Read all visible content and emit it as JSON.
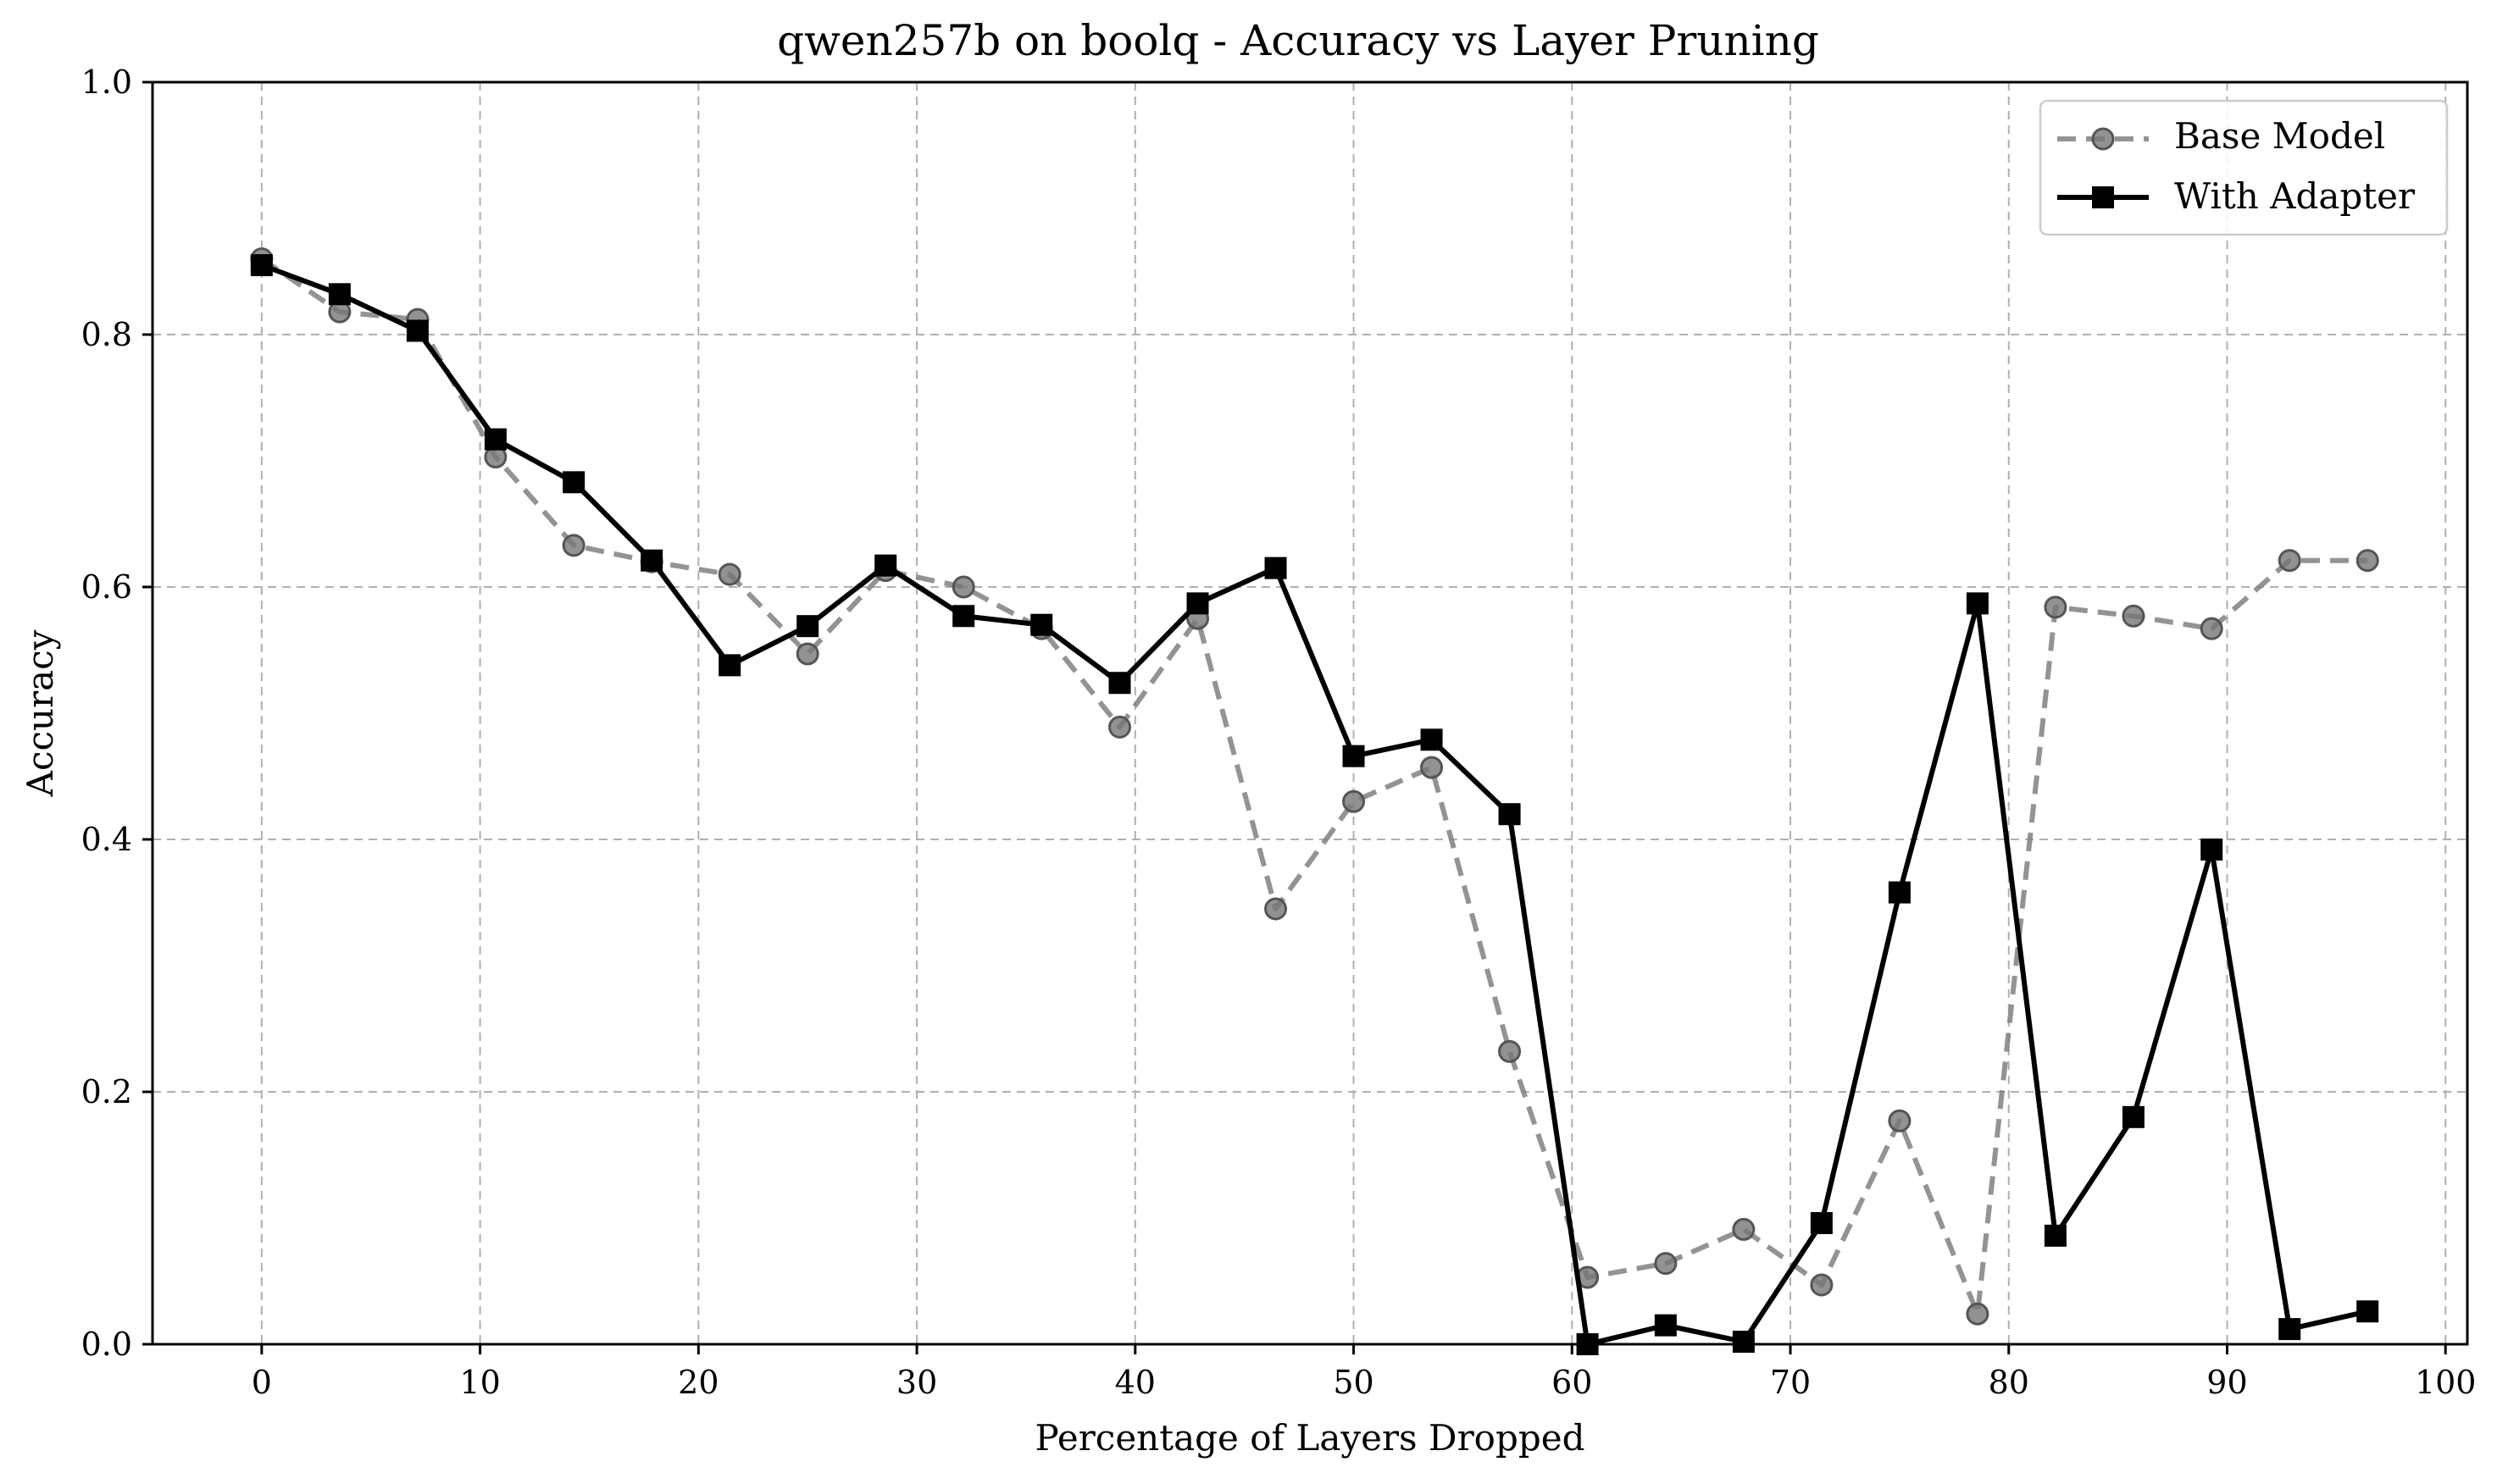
{
  "chart_data": {
    "type": "line",
    "title": "qwen257b on boolq - Accuracy vs Layer Pruning",
    "xlabel": "Percentage of Layers Dropped",
    "ylabel": "Accuracy",
    "xlim": [
      -5,
      101
    ],
    "ylim": [
      0,
      1
    ],
    "xticks": [
      0,
      10,
      20,
      30,
      40,
      50,
      60,
      70,
      80,
      90,
      100
    ],
    "xtick_labels": [
      "0",
      "10",
      "20",
      "30",
      "40",
      "50",
      "60",
      "70",
      "80",
      "90",
      "100"
    ],
    "yticks": [
      0,
      0.2,
      0.4,
      0.6,
      0.8,
      1.0
    ],
    "ytick_labels": [
      "0.0",
      "0.2",
      "0.4",
      "0.6",
      "0.8",
      "1.0"
    ],
    "grid": true,
    "legend_position": "top-right",
    "x": [
      0,
      3.57,
      7.14,
      10.71,
      14.29,
      17.86,
      21.43,
      25,
      28.57,
      32.14,
      35.71,
      39.29,
      42.86,
      46.43,
      50,
      53.57,
      57.14,
      60.71,
      64.29,
      67.86,
      71.43,
      75,
      78.57,
      82.14,
      85.71,
      89.29,
      92.86,
      96.43
    ],
    "series": [
      {
        "name": "Base Model",
        "color": "#808080",
        "line_style": "dashed",
        "marker": "circle",
        "values": [
          0.86,
          0.818,
          0.812,
          0.703,
          0.633,
          0.62,
          0.61,
          0.547,
          0.613,
          0.6,
          0.567,
          0.489,
          0.575,
          0.345,
          0.43,
          0.457,
          0.232,
          0.053,
          0.064,
          0.091,
          0.047,
          0.177,
          0.024,
          0.584,
          0.577,
          0.567,
          0.621,
          0.621
        ]
      },
      {
        "name": "With Adapter",
        "color": "#000000",
        "line_style": "solid",
        "marker": "square",
        "values": [
          0.855,
          0.832,
          0.803,
          0.717,
          0.683,
          0.621,
          0.538,
          0.569,
          0.617,
          0.577,
          0.57,
          0.524,
          0.587,
          0.615,
          0.466,
          0.479,
          0.42,
          0.0,
          0.015,
          0.002,
          0.096,
          0.358,
          0.587,
          0.086,
          0.18,
          0.392,
          0.012,
          0.026
        ]
      }
    ]
  }
}
